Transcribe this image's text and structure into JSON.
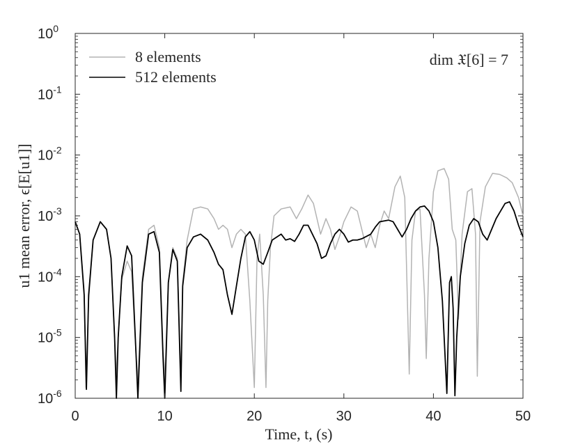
{
  "chart_data": {
    "type": "line",
    "xlabel": "Time, t, (s)",
    "ylabel": "u1 mean error, ϵ[E[u1]]",
    "annotation": "dim 𝔛[6] = 7",
    "xlim": [
      0,
      50
    ],
    "ylim": [
      1e-06,
      1
    ],
    "y_scale": "log",
    "x_ticks": [
      "0",
      "10",
      "20",
      "30",
      "40",
      "50"
    ],
    "y_ticks": [
      {
        "base": "10",
        "exp": "0"
      },
      {
        "base": "10",
        "exp": "-1"
      },
      {
        "base": "10",
        "exp": "-2"
      },
      {
        "base": "10",
        "exp": "-3"
      },
      {
        "base": "10",
        "exp": "-4"
      },
      {
        "base": "10",
        "exp": "-5"
      },
      {
        "base": "10",
        "exp": "-6"
      }
    ],
    "grid": false,
    "legend_position": "top-left",
    "series": [
      {
        "name": "8 elements",
        "color": "#b3b3b3",
        "x": [
          0,
          0.5,
          1.0,
          1.2,
          1.5,
          2.0,
          2.8,
          3.5,
          4.0,
          4.4,
          4.6,
          4.8,
          5.2,
          5.8,
          6.3,
          6.8,
          7.0,
          7.5,
          8.2,
          8.8,
          9.4,
          9.8,
          10.0,
          10.4,
          10.9,
          11.4,
          11.8,
          12.0,
          12.5,
          13.2,
          14.0,
          14.8,
          15.5,
          16.0,
          16.5,
          17.0,
          17.5,
          18.0,
          18.5,
          19.0,
          19.5,
          20.0,
          20.3,
          20.6,
          21.0,
          21.3,
          21.5,
          21.8,
          22.2,
          23.0,
          24.0,
          24.7,
          25.3,
          26.0,
          26.6,
          27.4,
          28.0,
          28.5,
          29.0,
          29.5,
          30.0,
          30.8,
          31.5,
          32.0,
          32.5,
          33.0,
          33.5,
          34.0,
          34.5,
          35.0,
          35.7,
          36.3,
          36.8,
          37.3,
          37.6,
          38.0,
          38.5,
          39.0,
          39.2,
          39.5,
          40.0,
          40.5,
          41.2,
          41.7,
          42.1,
          42.5,
          42.8,
          43.2,
          43.8,
          44.3,
          44.7,
          44.9,
          45.2,
          45.8,
          46.6,
          47.4,
          48.2,
          48.8,
          49.5,
          50.0
        ],
        "y": [
          0.0008,
          0.0005,
          6e-05,
          1.5e-06,
          4e-05,
          0.0004,
          0.0008,
          0.0006,
          0.0002,
          1e-05,
          2.5e-06,
          1e-05,
          9e-05,
          0.00018,
          0.00012,
          5e-06,
          2e-06,
          0.0001,
          0.0006,
          0.0007,
          0.0003,
          7e-06,
          2e-06,
          8e-05,
          0.0003,
          0.0002,
          2e-06,
          8e-05,
          0.0004,
          0.0013,
          0.0014,
          0.0013,
          0.0009,
          0.0006,
          0.0007,
          0.0006,
          0.0003,
          0.0005,
          0.0006,
          0.0005,
          4e-05,
          1.5e-06,
          0.0002,
          0.0005,
          5e-05,
          1.5e-06,
          4e-05,
          0.0003,
          0.001,
          0.0013,
          0.0014,
          0.0009,
          0.0013,
          0.0022,
          0.0016,
          0.0005,
          0.0009,
          0.0006,
          0.00028,
          0.00045,
          0.0008,
          0.0014,
          0.0012,
          0.0006,
          0.0003,
          0.0005,
          0.0003,
          0.0007,
          0.0012,
          0.0009,
          0.003,
          0.0045,
          0.002,
          2.5e-06,
          0.0004,
          0.0012,
          0.0013,
          5e-05,
          4.5e-06,
          0.0002,
          0.0025,
          0.0055,
          0.006,
          0.004,
          0.0006,
          0.0004,
          2e-05,
          0.0005,
          0.0025,
          0.0028,
          0.0005,
          2.3e-06,
          0.0008,
          0.003,
          0.005,
          0.0048,
          0.0042,
          0.0035,
          0.002,
          0.001
        ]
      },
      {
        "name": "512 elements",
        "color": "#000000",
        "x": [
          0,
          0.5,
          1.0,
          1.25,
          1.5,
          2.0,
          2.8,
          3.5,
          4.0,
          4.4,
          4.6,
          4.8,
          5.2,
          5.8,
          6.3,
          6.8,
          7.0,
          7.5,
          8.2,
          8.8,
          9.4,
          9.8,
          10.0,
          10.4,
          10.9,
          11.4,
          11.8,
          12.0,
          12.5,
          13.2,
          14.0,
          14.8,
          15.5,
          16.0,
          16.5,
          17.0,
          17.5,
          18.0,
          18.5,
          19.0,
          19.5,
          20.0,
          20.5,
          21.0,
          21.5,
          22.0,
          23.0,
          23.5,
          24.0,
          24.5,
          25.0,
          25.5,
          26.0,
          27.0,
          27.5,
          28.0,
          28.5,
          29.0,
          29.5,
          30.0,
          30.5,
          31.0,
          31.5,
          32.0,
          33.0,
          33.5,
          34.0,
          35.0,
          35.5,
          36.0,
          36.5,
          37.0,
          37.5,
          38.0,
          38.5,
          39.0,
          39.5,
          40.0,
          40.5,
          41.0,
          41.5,
          41.6,
          41.8,
          42.0,
          42.2,
          42.4,
          42.6,
          43.0,
          43.5,
          44.0,
          44.5,
          45.0,
          45.5,
          46.0,
          46.5,
          47.0,
          47.5,
          48.0,
          48.5,
          49.0,
          49.5,
          50.0
        ],
        "y": [
          0.0008,
          0.0005,
          5e-05,
          1.4e-06,
          5e-05,
          0.0004,
          0.0008,
          0.0006,
          0.0002,
          1e-05,
          5e-07,
          1e-05,
          0.0001,
          0.00032,
          0.00022,
          5e-06,
          5e-07,
          8e-05,
          0.0005,
          0.00055,
          0.00025,
          5e-06,
          8e-07,
          8e-05,
          0.00028,
          0.00018,
          1.3e-06,
          7e-05,
          0.0003,
          0.00045,
          0.0005,
          0.0004,
          0.00025,
          0.00016,
          0.00013,
          5e-05,
          2.4e-05,
          7e-05,
          0.0002,
          0.00045,
          0.00055,
          0.0004,
          0.00018,
          0.00016,
          0.00025,
          0.0004,
          0.0005,
          0.0004,
          0.00042,
          0.00038,
          0.0005,
          0.0007,
          0.0007,
          0.00035,
          0.0002,
          0.00022,
          0.00035,
          0.0005,
          0.0006,
          0.0005,
          0.00037,
          0.0004,
          0.0004,
          0.00042,
          0.0005,
          0.00065,
          0.0008,
          0.00085,
          0.0008,
          0.0006,
          0.00045,
          0.0006,
          0.0009,
          0.0012,
          0.0014,
          0.00145,
          0.0012,
          0.0008,
          0.0003,
          4e-05,
          1.2e-06,
          5e-06,
          8e-05,
          0.0001,
          3e-05,
          1.1e-06,
          1e-05,
          0.0001,
          0.00035,
          0.0007,
          0.0009,
          0.0008,
          0.0005,
          0.0004,
          0.0006,
          0.0009,
          0.0012,
          0.0016,
          0.0017,
          0.0012,
          0.0007,
          0.00045
        ]
      }
    ]
  }
}
